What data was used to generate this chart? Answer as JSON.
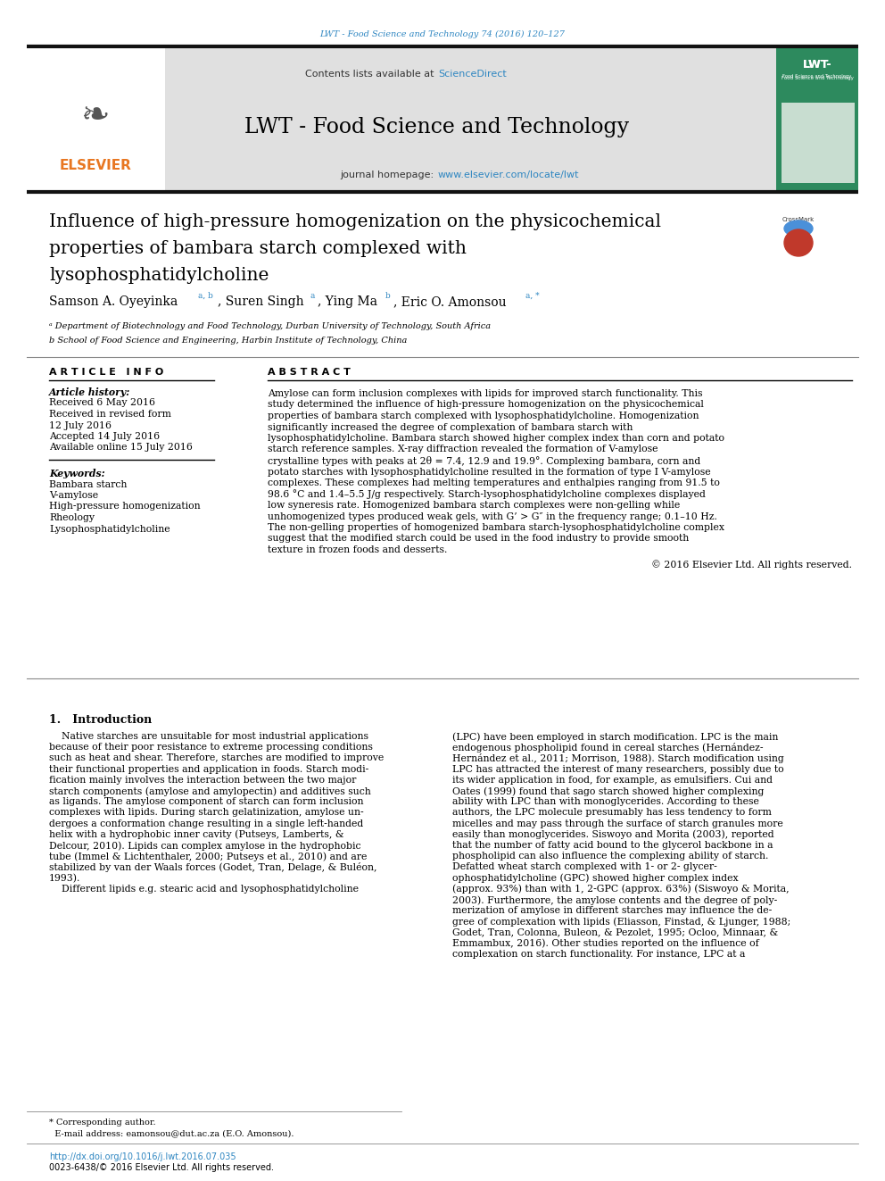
{
  "page_bg": "#ffffff",
  "journal_ref": "LWT - Food Science and Technology 74 (2016) 120–127",
  "journal_ref_color": "#2e86c1",
  "contents_text": "Contents lists available at ",
  "sciencedirect_text": "ScienceDirect",
  "sciencedirect_color": "#2e86c1",
  "journal_name": "LWT - Food Science and Technology",
  "journal_homepage_label": "journal homepage: ",
  "journal_url": "www.elsevier.com/locate/lwt",
  "journal_url_color": "#2e86c1",
  "header_bg": "#e0e0e0",
  "elsevier_orange": "#e87722",
  "paper_title_line1": "Influence of high-pressure homogenization on the physicochemical",
  "paper_title_line2": "properties of bambara starch complexed with",
  "paper_title_line3": "lysophosphatidylcholine",
  "affil_a": "ᵃ Department of Biotechnology and Food Technology, Durban University of Technology, South Africa",
  "affil_b": "b School of Food Science and Engineering, Harbin Institute of Technology, China",
  "article_info_title": "ARTICLE INFO",
  "article_history_label": "Article history:",
  "received_text": "Received 6 May 2016",
  "revised_text": "Received in revised form",
  "revised_date": "12 July 2016",
  "accepted_text": "Accepted 14 July 2016",
  "available_text": "Available online 15 July 2016",
  "keywords_label": "Keywords:",
  "keyword1": "Bambara starch",
  "keyword2": "V-amylose",
  "keyword3": "High-pressure homogenization",
  "keyword4": "Rheology",
  "keyword5": "Lysophosphatidylcholine",
  "abstract_title": "ABSTRACT",
  "abstract_text": "Amylose can form inclusion complexes with lipids for improved starch functionality. This study determined the influence of high-pressure homogenization on the physicochemical properties of bambara starch complexed with lysophosphatidylcholine. Homogenization significantly increased the degree of complexation of bambara starch with lysophosphatidylcholine. Bambara starch showed higher complex index than corn and potato starch reference samples. X-ray diffraction revealed the formation of V-amylose crystalline types with peaks at 2θ = 7.4, 12.9 and 19.9°. Complexing bambara, corn and potato starches with lysophosphatidylcholine resulted in the formation of type I V-amylose complexes. These complexes had melting temperatures and enthalpies ranging from 91.5 to 98.6 °C and 1.4–5.5 J/g respectively. Starch-lysophosphatidylcholine complexes displayed low syneresis rate. Homogenized bambara starch complexes were non-gelling while unhomogenized types produced weak gels, with G’ > G″ in the frequency range; 0.1–10 Hz. The non-gelling properties of homogenized bambara starch-lysophosphatidylcholine complex suggest that the modified starch could be used in the food industry to provide smooth texture in frozen foods and desserts.",
  "copyright_text": "© 2016 Elsevier Ltd. All rights reserved.",
  "section1_title": "1.   Introduction",
  "intro_col1_lines": [
    "    Native starches are unsuitable for most industrial applications",
    "because of their poor resistance to extreme processing conditions",
    "such as heat and shear. Therefore, starches are modified to improve",
    "their functional properties and application in foods. Starch modi-",
    "fication mainly involves the interaction between the two major",
    "starch components (amylose and amylopectin) and additives such",
    "as ligands. The amylose component of starch can form inclusion",
    "complexes with lipids. During starch gelatinization, amylose un-",
    "dergoes a conformation change resulting in a single left-handed",
    "helix with a hydrophobic inner cavity (Putseys, Lamberts, &",
    "Delcour, 2010). Lipids can complex amylose in the hydrophobic",
    "tube (Immel & Lichtenthaler, 2000; Putseys et al., 2010) and are",
    "stabilized by van der Waals forces (Godet, Tran, Delage, & Buléon,",
    "1993).",
    "    Different lipids e.g. stearic acid and lysophosphatidylcholine"
  ],
  "intro_col2_lines": [
    "(LPC) have been employed in starch modification. LPC is the main",
    "endogenous phospholipid found in cereal starches (Hernández-",
    "Hernández et al., 2011; Morrison, 1988). Starch modification using",
    "LPC has attracted the interest of many researchers, possibly due to",
    "its wider application in food, for example, as emulsifiers. Cui and",
    "Oates (1999) found that sago starch showed higher complexing",
    "ability with LPC than with monoglycerides. According to these",
    "authors, the LPC molecule presumably has less tendency to form",
    "micelles and may pass through the surface of starch granules more",
    "easily than monoglycerides. Siswoyo and Morita (2003), reported",
    "that the number of fatty acid bound to the glycerol backbone in a",
    "phospholipid can also influence the complexing ability of starch.",
    "Defatted wheat starch complexed with 1- or 2- glycer-",
    "ophosphatidylcholine (GPC) showed higher complex index",
    "(approx. 93%) than with 1, 2-GPC (approx. 63%) (Siswoyo & Morita,",
    "2003). Furthermore, the amylose contents and the degree of poly-",
    "merization of amylose in different starches may influence the de-",
    "gree of complexation with lipids (Eliasson, Finstad, & Ljunger, 1988;",
    "Godet, Tran, Colonna, Buleon, & Pezolet, 1995; Ocloo, Minnaar, &",
    "Emmambux, 2016). Other studies reported on the influence of",
    "complexation on starch functionality. For instance, LPC at a"
  ],
  "footnote_line1": "* Corresponding author.",
  "footnote_line2": "  E-mail address: eamonsou@dut.ac.za (E.O. Amonsou).",
  "doi_text": "http://dx.doi.org/10.1016/j.lwt.2016.07.035",
  "issn_text": "0023-6438/© 2016 Elsevier Ltd. All rights reserved.",
  "lwt_cover_bg": "#2d8a5e",
  "lwt_cover_text_color": "#ffffff"
}
